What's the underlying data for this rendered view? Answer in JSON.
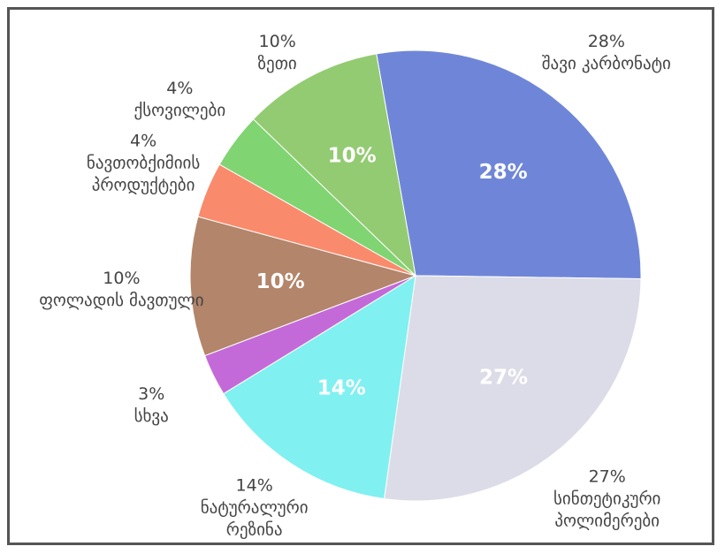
{
  "chart_data": {
    "type": "pie",
    "categories": [
      "შავი კარბონატი",
      "სინთეტიკური პოლიმერები",
      "ნატურალური რეზინა",
      "სხვა",
      "ფოლადის მავთული",
      "ნავთობქიმიის პროდუქტები",
      "ქსოვილები",
      "ზეთი"
    ],
    "values": [
      28,
      27,
      14,
      3,
      10,
      4,
      4,
      10
    ],
    "value_labels": [
      "28%",
      "27%",
      "14%",
      "3%",
      "10%",
      "4%",
      "4%",
      "10%"
    ],
    "colors": [
      "#6f86d8",
      "#dcdce8",
      "#80f0f0",
      "#c46ad8",
      "#b3856b",
      "#f98b6c",
      "#80d472",
      "#93cb72"
    ]
  }
}
